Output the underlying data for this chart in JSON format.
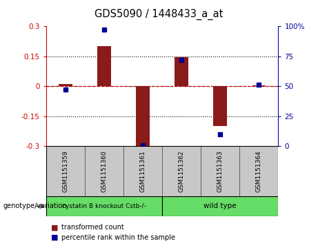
{
  "title": "GDS5090 / 1448433_a_at",
  "samples": [
    "GSM1151359",
    "GSM1151360",
    "GSM1151361",
    "GSM1151362",
    "GSM1151363",
    "GSM1151364"
  ],
  "transformed_count": [
    0.01,
    0.2,
    -0.305,
    0.145,
    -0.2,
    0.005
  ],
  "percentile_rank": [
    47,
    97,
    1,
    72,
    10,
    51
  ],
  "group1_label": "cystatin B knockout Cstb-/-",
  "group2_label": "wild type",
  "group1_indices": [
    0,
    1,
    2
  ],
  "group2_indices": [
    3,
    4,
    5
  ],
  "group_color": "#66DD66",
  "bar_color": "#8B1A1A",
  "dot_color": "#000099",
  "ylim_left": [
    -0.3,
    0.3
  ],
  "ylim_right": [
    0,
    100
  ],
  "yticks_left": [
    -0.3,
    -0.15,
    0.0,
    0.15,
    0.3
  ],
  "yticks_right": [
    0,
    25,
    50,
    75,
    100
  ],
  "ytick_labels_left": [
    "-0.3",
    "-0.15",
    "0",
    "0.15",
    "0.3"
  ],
  "ytick_labels_right": [
    "0",
    "25",
    "50",
    "75",
    "100%"
  ],
  "legend_red_label": "transformed count",
  "legend_blue_label": "percentile rank within the sample",
  "genotype_label": "genotype/variation",
  "bg_color": "#ffffff",
  "label_area_color": "#c8c8c8",
  "bar_width": 0.35
}
